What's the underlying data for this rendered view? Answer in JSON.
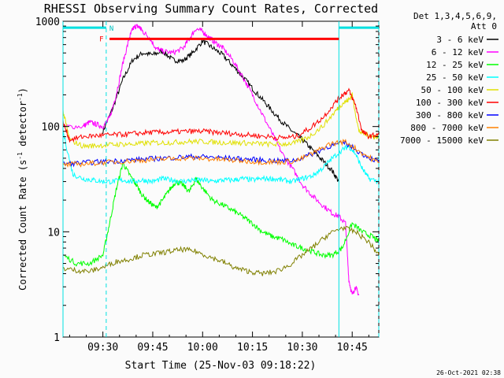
{
  "chart_data": {
    "type": "line",
    "title": "RHESSI Observing Summary Count Rates, Corrected",
    "xlabel": "Start Time (25-Nov-03 09:18:22)",
    "ylabel_main": "Corrected Count Rate (s",
    "ylabel_sup1": "-1",
    "ylabel_mid": " detector",
    "ylabel_sup2": "-1",
    "ylabel_end": ")",
    "yscale": "log",
    "ylim": [
      1,
      1000
    ],
    "xlim_minutes": [
      0,
      95
    ],
    "x_ticks": [
      {
        "minute": 12,
        "label": "09:30"
      },
      {
        "minute": 27,
        "label": "09:45"
      },
      {
        "minute": 42,
        "label": "10:00"
      },
      {
        "minute": 57,
        "label": "10:15"
      },
      {
        "minute": 72,
        "label": "10:30"
      },
      {
        "minute": 87,
        "label": "10:45"
      }
    ],
    "y_ticks": [
      {
        "value": 1,
        "label": "1"
      },
      {
        "value": 10,
        "label": "10"
      },
      {
        "value": 100,
        "label": "100"
      },
      {
        "value": 1000,
        "label": "1000"
      }
    ],
    "legend_header": [
      "Det 1,3,4,5,6,9,",
      "Att 0"
    ],
    "legend_placement": "right",
    "series": [
      {
        "name": "3 - 6 keV",
        "color": "#000000",
        "x": [
          12,
          15,
          18,
          21,
          24,
          27,
          30,
          33,
          36,
          39,
          42,
          45,
          48,
          51,
          54,
          57,
          60,
          63,
          66,
          69,
          72,
          75,
          78,
          81,
          83
        ],
        "y": [
          90,
          150,
          280,
          430,
          500,
          480,
          520,
          430,
          420,
          500,
          650,
          560,
          480,
          380,
          300,
          230,
          180,
          140,
          110,
          90,
          75,
          60,
          48,
          38,
          30
        ]
      },
      {
        "name": "6 - 12 keV",
        "color": "#ff00ff",
        "x": [
          0,
          6,
          8,
          10,
          12,
          14,
          16,
          18,
          20,
          21,
          22,
          23,
          24,
          26,
          28,
          30,
          33,
          36,
          38,
          40,
          42,
          44,
          46,
          48,
          51,
          54,
          57,
          60,
          63,
          66,
          69,
          72,
          75,
          78,
          81,
          83,
          85,
          86,
          87,
          88,
          89
        ],
        "y": [
          100,
          100,
          110,
          105,
          100,
          120,
          200,
          400,
          700,
          850,
          900,
          880,
          800,
          700,
          550,
          520,
          500,
          550,
          680,
          850,
          800,
          700,
          620,
          560,
          430,
          300,
          200,
          130,
          85,
          55,
          40,
          28,
          22,
          18,
          15,
          14,
          12,
          3.5,
          2.5,
          3,
          2.5
        ]
      },
      {
        "name": "12 - 25 keV",
        "color": "#00ff00",
        "x": [
          0,
          4,
          8,
          12,
          14,
          16,
          18,
          20,
          22,
          24,
          26,
          28,
          30,
          32,
          34,
          36,
          38,
          40,
          42,
          45,
          48,
          51,
          54,
          57,
          60,
          63,
          66,
          69,
          72,
          75,
          78,
          81,
          84,
          87,
          90,
          93,
          95
        ],
        "y": [
          6,
          5,
          5,
          6,
          12,
          25,
          45,
          35,
          28,
          22,
          19,
          17,
          20,
          25,
          30,
          28,
          24,
          32,
          26,
          20,
          18,
          16,
          14,
          12,
          10,
          9,
          8.5,
          7.5,
          7,
          6.5,
          6,
          6,
          7,
          12,
          10,
          9,
          8
        ]
      },
      {
        "name": "25 - 50 keV",
        "color": "#00ffff",
        "x": [
          0,
          3,
          6,
          9,
          12,
          15,
          18,
          21,
          24,
          27,
          30,
          33,
          36,
          39,
          42,
          45,
          48,
          51,
          54,
          57,
          60,
          63,
          66,
          69,
          72,
          75,
          78,
          81,
          84,
          86,
          88,
          90,
          92,
          95
        ],
        "y": [
          90,
          35,
          32,
          31,
          30,
          30,
          31,
          30,
          31,
          30,
          32,
          31,
          30,
          31,
          31,
          30,
          31,
          31,
          32,
          31,
          32,
          32,
          31,
          30,
          32,
          34,
          40,
          50,
          60,
          65,
          55,
          40,
          32,
          30
        ]
      },
      {
        "name": "50 - 100 keV",
        "color": "#e0e000",
        "x": [
          0,
          2,
          6,
          10,
          14,
          18,
          22,
          26,
          30,
          34,
          38,
          42,
          46,
          50,
          54,
          58,
          62,
          66,
          70,
          74,
          78,
          82,
          84,
          86,
          87,
          89,
          91,
          93,
          95
        ],
        "y": [
          140,
          75,
          65,
          66,
          67,
          68,
          68,
          70,
          70,
          71,
          72,
          72,
          71,
          70,
          70,
          69,
          68,
          68,
          70,
          80,
          100,
          140,
          165,
          180,
          200,
          90,
          85,
          80,
          80
        ]
      },
      {
        "name": "100 - 300 keV",
        "color": "#ff0000",
        "x": [
          0,
          2,
          6,
          10,
          14,
          18,
          22,
          26,
          30,
          34,
          38,
          42,
          46,
          50,
          54,
          58,
          62,
          66,
          70,
          74,
          78,
          82,
          84,
          86,
          88,
          90,
          92,
          95
        ],
        "y": [
          110,
          75,
          80,
          82,
          83,
          84,
          86,
          88,
          88,
          89,
          90,
          90,
          88,
          86,
          84,
          82,
          80,
          78,
          80,
          95,
          120,
          170,
          200,
          220,
          160,
          90,
          80,
          85
        ]
      },
      {
        "name": "300 - 800 keV",
        "color": "#0000ff",
        "x": [
          0,
          5,
          10,
          15,
          20,
          25,
          30,
          35,
          40,
          45,
          50,
          55,
          60,
          65,
          70,
          75,
          80,
          85,
          90,
          95
        ],
        "y": [
          44,
          45,
          46,
          47,
          48,
          49,
          50,
          51,
          52,
          51,
          50,
          49,
          48,
          47,
          48,
          55,
          65,
          70,
          55,
          46
        ]
      },
      {
        "name": "800 - 7000 keV",
        "color": "#ff8000",
        "x": [
          0,
          5,
          10,
          15,
          20,
          25,
          30,
          35,
          40,
          45,
          50,
          55,
          60,
          65,
          70,
          75,
          80,
          85,
          90,
          95
        ],
        "y": [
          43,
          44,
          45,
          46,
          47,
          48,
          49,
          50,
          50,
          49,
          48,
          47,
          46,
          46,
          47,
          55,
          68,
          72,
          56,
          45
        ]
      },
      {
        "name": "7000 - 15000 keV",
        "color": "#808000",
        "x": [
          0,
          4,
          8,
          12,
          16,
          20,
          24,
          28,
          32,
          36,
          40,
          44,
          48,
          52,
          56,
          60,
          64,
          68,
          72,
          76,
          80,
          84,
          88,
          92,
          95
        ],
        "y": [
          4.5,
          4.3,
          4.2,
          4.6,
          5.2,
          5.5,
          6,
          6.2,
          6.5,
          6.8,
          6.5,
          5.8,
          5.2,
          4.5,
          4.2,
          4,
          4.2,
          4.8,
          6,
          7.5,
          9.5,
          11,
          10,
          8,
          6
        ]
      }
    ],
    "annotations": {
      "fast_rate_label": "F",
      "night_label": "N",
      "fast_rate_span": [
        14,
        83
      ],
      "fast_rate_y": 680,
      "night_bar_spans": [
        [
          0,
          13
        ],
        [
          83,
          95
        ]
      ],
      "night_bar_y": 870,
      "vlines_solid": [
        0,
        83
      ],
      "vlines_dashed": [
        13,
        95
      ]
    }
  },
  "footer_timestamp": "26-Oct-2021 02:38"
}
